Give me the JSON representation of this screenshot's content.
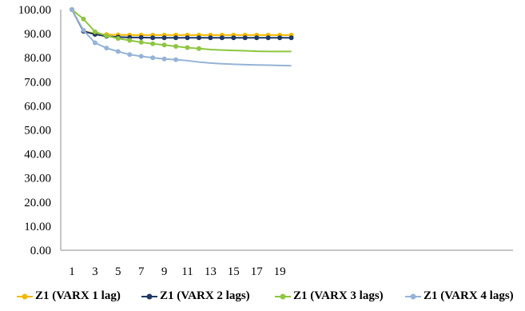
{
  "chart_data": {
    "type": "line",
    "title": "",
    "xlabel": "",
    "ylabel": "",
    "x": [
      1,
      2,
      3,
      4,
      5,
      6,
      7,
      8,
      9,
      10,
      11,
      12,
      13,
      14,
      15,
      16,
      17,
      18,
      19,
      20
    ],
    "x_tick_labels": [
      "1",
      "3",
      "5",
      "7",
      "9",
      "11",
      "13",
      "15",
      "17",
      "19"
    ],
    "y_tick_labels": [
      "0.00",
      "10.00",
      "20.00",
      "30.00",
      "40.00",
      "50.00",
      "60.00",
      "70.00",
      "80.00",
      "90.00",
      "100.00"
    ],
    "ylim": [
      0,
      100
    ],
    "grid": false,
    "legend_position": "bottom",
    "series": [
      {
        "name": "Z1 (VARX 1 lag)",
        "color": "#F5B800",
        "values": [
          100,
          91.1,
          90.0,
          89.6,
          89.5,
          89.4,
          89.4,
          89.4,
          89.4,
          89.4,
          89.4,
          89.4,
          89.4,
          89.4,
          89.4,
          89.4,
          89.4,
          89.4,
          89.4,
          89.4
        ]
      },
      {
        "name": "Z1 (VARX 2 lags)",
        "color": "#1F3864",
        "values": [
          100,
          91.0,
          89.7,
          88.9,
          88.6,
          88.4,
          88.4,
          88.3,
          88.3,
          88.3,
          88.3,
          88.3,
          88.3,
          88.3,
          88.3,
          88.3,
          88.3,
          88.3,
          88.3,
          88.3
        ]
      },
      {
        "name": "Z1 (VARX 3 lags)",
        "color": "#8DC63F",
        "values": [
          100,
          96.1,
          90.8,
          89.1,
          88.0,
          87.2,
          86.4,
          85.8,
          85.3,
          84.7,
          84.2,
          83.8,
          83.4,
          83.2,
          83.0,
          82.9,
          82.7,
          82.6,
          82.6,
          82.6
        ]
      },
      {
        "name": "Z1 (VARX 4 lags)",
        "color": "#95B3D7",
        "values": [
          100,
          91.4,
          86.2,
          84.0,
          82.6,
          81.3,
          80.6,
          80.0,
          79.5,
          79.2,
          78.8,
          78.2,
          77.8,
          77.5,
          77.3,
          77.1,
          77.0,
          76.9,
          76.8,
          76.7
        ]
      }
    ]
  }
}
